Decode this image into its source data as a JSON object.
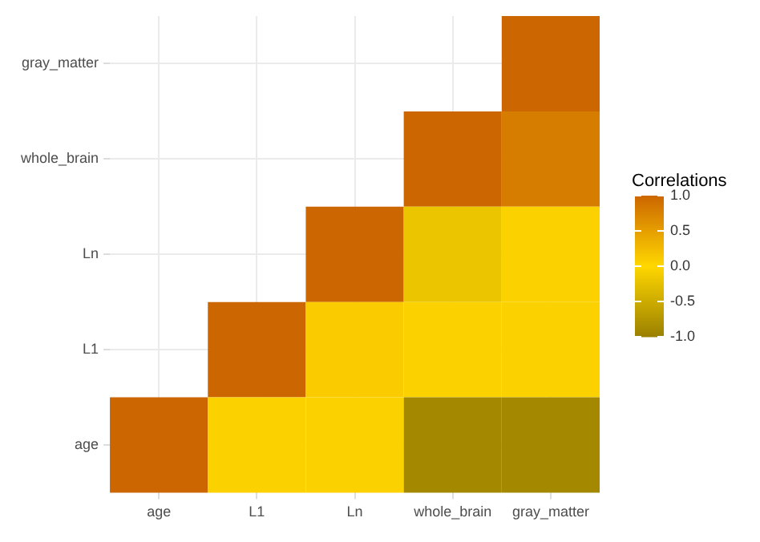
{
  "chart_data": {
    "type": "heatmap",
    "categories": [
      "age",
      "L1",
      "Ln",
      "whole_brain",
      "gray_matter"
    ],
    "y_categories": [
      "gray_matter",
      "whole_brain",
      "Ln",
      "L1",
      "age"
    ],
    "cells": [
      [
        null,
        null,
        null,
        null,
        1
      ],
      [
        null,
        null,
        null,
        1,
        0.8
      ],
      [
        null,
        null,
        1,
        -0.2,
        0.05
      ],
      [
        null,
        1,
        0.1,
        0.05,
        0.05
      ],
      [
        1,
        0.05,
        0.05,
        -0.9,
        -0.9
      ]
    ],
    "clabel": "Correlations",
    "clim": [
      -1,
      1
    ],
    "cticks": [
      {
        "value": 1,
        "label": "1.0"
      },
      {
        "value": 0.5,
        "label": "0.5"
      },
      {
        "value": 0,
        "label": "0.0"
      },
      {
        "value": -0.5,
        "label": "-0.5"
      },
      {
        "value": -1,
        "label": "-1.0"
      }
    ],
    "colors": [
      "#9a8000",
      "#ffd700",
      "#cc6600"
    ],
    "grid": true
  }
}
